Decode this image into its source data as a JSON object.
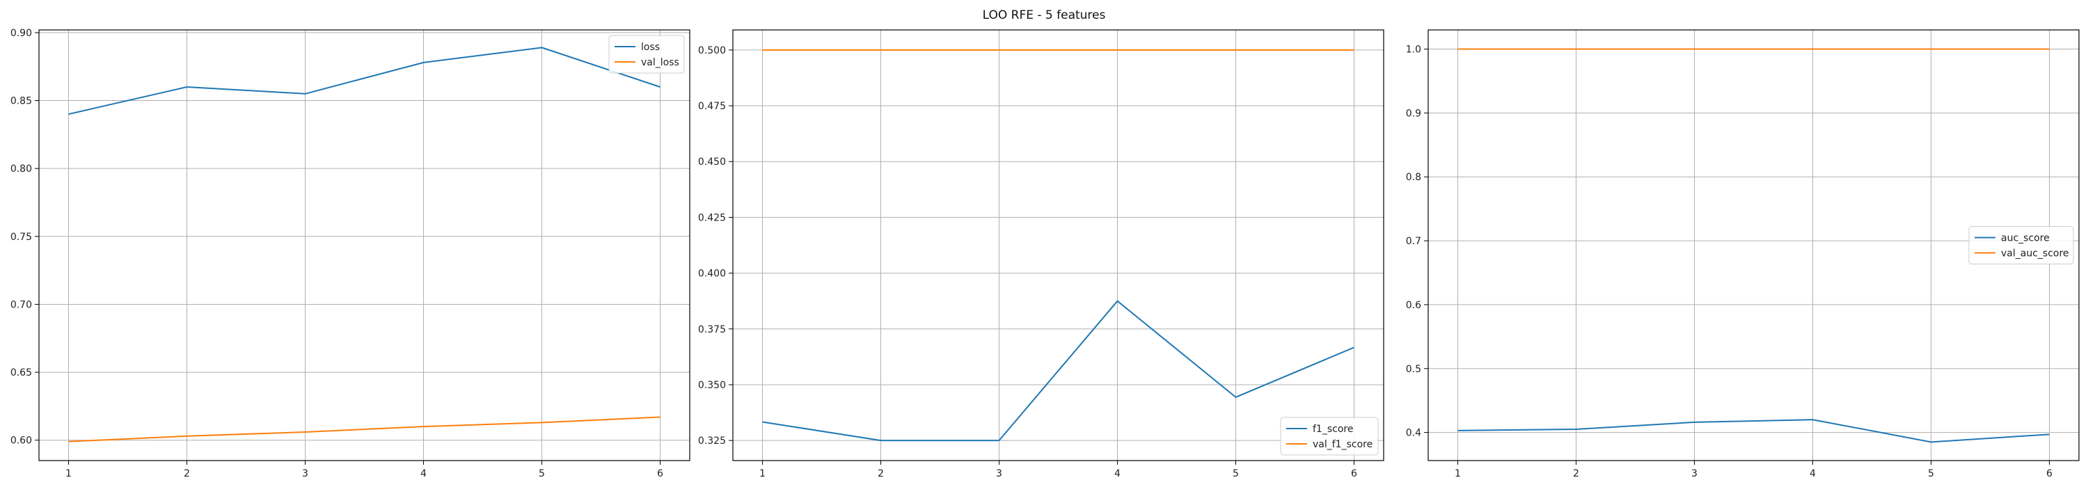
{
  "figure": {
    "title": "LOO RFE - 5 features"
  },
  "chart_data": [
    {
      "type": "line",
      "x": [
        1,
        2,
        3,
        4,
        5,
        6
      ],
      "xticks": [
        1,
        2,
        3,
        4,
        5,
        6
      ],
      "ylim": [
        0.585,
        0.902
      ],
      "yticks": [
        0.6,
        0.65,
        0.7,
        0.75,
        0.8,
        0.85,
        0.9
      ],
      "ytick_labels": [
        "0.60",
        "0.65",
        "0.70",
        "0.75",
        "0.80",
        "0.85",
        "0.90"
      ],
      "grid": true,
      "legend_position": "top-right",
      "series": [
        {
          "name": "loss",
          "color": "#1f77b4",
          "values": [
            0.84,
            0.86,
            0.855,
            0.878,
            0.889,
            0.86
          ]
        },
        {
          "name": "val_loss",
          "color": "#ff7f0e",
          "values": [
            0.599,
            0.603,
            0.606,
            0.61,
            0.613,
            0.617
          ]
        }
      ]
    },
    {
      "type": "line",
      "x": [
        1,
        2,
        3,
        4,
        5,
        6
      ],
      "xticks": [
        1,
        2,
        3,
        4,
        5,
        6
      ],
      "ylim": [
        0.316,
        0.509
      ],
      "yticks": [
        0.325,
        0.35,
        0.375,
        0.4,
        0.425,
        0.45,
        0.475,
        0.5
      ],
      "ytick_labels": [
        "0.325",
        "0.350",
        "0.375",
        "0.400",
        "0.425",
        "0.450",
        "0.475",
        "0.500"
      ],
      "grid": true,
      "legend_position": "bottom-right",
      "series": [
        {
          "name": "f1_score",
          "color": "#1f77b4",
          "values": [
            0.3333,
            0.325,
            0.325,
            0.3875,
            0.3444,
            0.3667
          ]
        },
        {
          "name": "val_f1_score",
          "color": "#ff7f0e",
          "values": [
            0.5,
            0.5,
            0.5,
            0.5,
            0.5,
            0.5
          ]
        }
      ]
    },
    {
      "type": "line",
      "x": [
        1,
        2,
        3,
        4,
        5,
        6
      ],
      "xticks": [
        1,
        2,
        3,
        4,
        5,
        6
      ],
      "ylim": [
        0.356,
        1.03
      ],
      "yticks": [
        0.4,
        0.5,
        0.6,
        0.7,
        0.8,
        0.9,
        1.0
      ],
      "ytick_labels": [
        "0.4",
        "0.5",
        "0.6",
        "0.7",
        "0.8",
        "0.9",
        "1.0"
      ],
      "grid": true,
      "legend_position": "center-right",
      "series": [
        {
          "name": "auc_score",
          "color": "#1f77b4",
          "values": [
            0.403,
            0.405,
            0.416,
            0.42,
            0.385,
            0.397
          ]
        },
        {
          "name": "val_auc_score",
          "color": "#ff7f0e",
          "values": [
            1.0,
            1.0,
            1.0,
            1.0,
            1.0,
            1.0
          ]
        }
      ]
    }
  ]
}
